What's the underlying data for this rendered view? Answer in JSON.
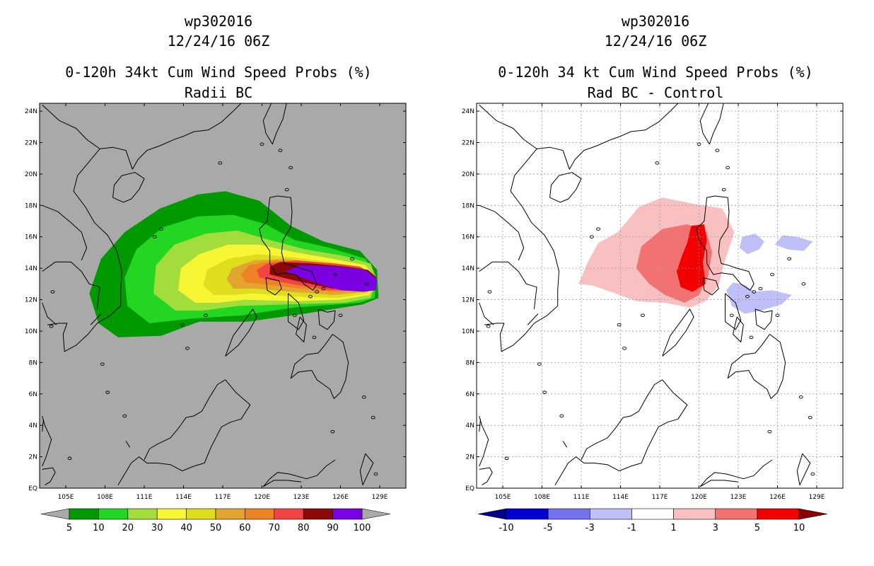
{
  "chart_data": [
    {
      "type": "heatmap",
      "title_lines": [
        "wp302016",
        "12/24/16 06Z",
        "0-120h 34kt Cum Wind Speed Probs (%)",
        "Radii BC"
      ],
      "x_ticks": [
        "105E",
        "108E",
        "111E",
        "114E",
        "117E",
        "120E",
        "123E",
        "126E",
        "129E"
      ],
      "y_ticks": [
        "EQ",
        "2N",
        "4N",
        "6N",
        "8N",
        "10N",
        "12N",
        "14N",
        "16N",
        "18N",
        "20N",
        "22N",
        "24N"
      ],
      "xlim": [
        103,
        131
      ],
      "ylim": [
        0,
        24.5
      ],
      "background": "#a9a9a9",
      "colorbar": {
        "labels": [
          "5",
          "10",
          "20",
          "30",
          "40",
          "50",
          "60",
          "70",
          "80",
          "90",
          "100"
        ],
        "colors": [
          "#009a00",
          "#22d622",
          "#a2dd3c",
          "#f6f634",
          "#dede1e",
          "#e2a630",
          "#ee8224",
          "#f24444",
          "#8a0a0a",
          "#7a02e2"
        ],
        "low_color": "#a9a9a9",
        "high_color": "#a9a9a9"
      },
      "contour_levels": [
        {
          "level": 5,
          "color": "#009a00",
          "poly": [
            [
              109,
              9.6
            ],
            [
              107.5,
              10.5
            ],
            [
              106.8,
              12.4
            ],
            [
              107.7,
              14.6
            ],
            [
              109.5,
              16.3
            ],
            [
              112.2,
              17.8
            ],
            [
              115.1,
              18.7
            ],
            [
              117.2,
              18.9
            ],
            [
              119.8,
              18.3
            ],
            [
              122.2,
              16.7
            ],
            [
              124.7,
              15.7
            ],
            [
              127.5,
              15.1
            ],
            [
              128.8,
              13.9
            ],
            [
              128.9,
              12.1
            ],
            [
              127.7,
              11.7
            ],
            [
              123.2,
              11.1
            ],
            [
              118.9,
              10.6
            ],
            [
              115.2,
              10.6
            ],
            [
              112.3,
              9.7
            ]
          ]
        },
        {
          "level": 10,
          "color": "#22d622",
          "poly": [
            [
              111.4,
              10.5
            ],
            [
              109.7,
              11.6
            ],
            [
              109.5,
              13.4
            ],
            [
              110.4,
              15.2
            ],
            [
              112.4,
              16.6
            ],
            [
              115.1,
              17.3
            ],
            [
              117.8,
              17.4
            ],
            [
              120.3,
              16.8
            ],
            [
              122.5,
              15.8
            ],
            [
              125.2,
              15.3
            ],
            [
              127.9,
              14.6
            ],
            [
              128.8,
              13.4
            ],
            [
              128.6,
              12.1
            ],
            [
              127.4,
              11.8
            ],
            [
              122.4,
              11.5
            ],
            [
              118.5,
              11.0
            ],
            [
              114.7,
              10.8
            ]
          ]
        },
        {
          "level": 20,
          "color": "#a2dd3c",
          "poly": [
            [
              113.4,
              11.3
            ],
            [
              111.7,
              12.4
            ],
            [
              111.9,
              14.2
            ],
            [
              113.3,
              15.5
            ],
            [
              115.7,
              16.2
            ],
            [
              118.1,
              16.4
            ],
            [
              120.6,
              15.8
            ],
            [
              123.3,
              15.2
            ],
            [
              126.2,
              14.8
            ],
            [
              128.3,
              14.3
            ],
            [
              128.8,
              13.2
            ],
            [
              128.3,
              12.1
            ],
            [
              126.3,
              11.8
            ],
            [
              122.0,
              11.7
            ],
            [
              118.2,
              11.6
            ],
            [
              115.4,
              11.3
            ]
          ]
        },
        {
          "level": 30,
          "color": "#f6f634",
          "poly": [
            [
              114.9,
              11.8
            ],
            [
              113.6,
              12.6
            ],
            [
              113.8,
              14.0
            ],
            [
              115.2,
              14.9
            ],
            [
              117.4,
              15.5
            ],
            [
              119.8,
              15.5
            ],
            [
              122.6,
              15.0
            ],
            [
              125.4,
              14.6
            ],
            [
              127.9,
              14.2
            ],
            [
              128.8,
              13.3
            ],
            [
              128.2,
              12.3
            ],
            [
              126.0,
              12.0
            ],
            [
              122.5,
              11.9
            ],
            [
              118.7,
              12.0
            ],
            [
              116.6,
              11.8
            ]
          ]
        },
        {
          "level": 40,
          "color": "#dede1e",
          "poly": [
            [
              116.3,
              12.3
            ],
            [
              115.5,
              12.9
            ],
            [
              115.8,
              13.9
            ],
            [
              117.4,
              14.6
            ],
            [
              119.7,
              14.9
            ],
            [
              122.3,
              14.7
            ],
            [
              125.2,
              14.4
            ],
            [
              127.8,
              14.0
            ],
            [
              128.8,
              13.3
            ],
            [
              128.1,
              12.4
            ],
            [
              125.8,
              12.1
            ],
            [
              122.3,
              12.2
            ],
            [
              119.3,
              12.4
            ],
            [
              117.8,
              12.3
            ]
          ]
        },
        {
          "level": 50,
          "color": "#e2a630",
          "poly": [
            [
              117.8,
              12.7
            ],
            [
              117.3,
              13.3
            ],
            [
              117.7,
              14.0
            ],
            [
              119.4,
              14.5
            ],
            [
              121.8,
              14.6
            ],
            [
              124.8,
              14.3
            ],
            [
              127.6,
              14.0
            ],
            [
              128.8,
              13.3
            ],
            [
              128.0,
              12.5
            ],
            [
              125.5,
              12.3
            ],
            [
              122.1,
              12.5
            ],
            [
              119.5,
              12.7
            ]
          ]
        },
        {
          "level": 60,
          "color": "#ee8224",
          "poly": [
            [
              118.7,
              13.1
            ],
            [
              118.4,
              13.6
            ],
            [
              119.0,
              14.2
            ],
            [
              121.1,
              14.5
            ],
            [
              124.3,
              14.3
            ],
            [
              127.4,
              14.0
            ],
            [
              128.8,
              13.3
            ],
            [
              127.9,
              12.6
            ],
            [
              125.3,
              12.5
            ],
            [
              122.0,
              12.8
            ],
            [
              119.9,
              13.0
            ]
          ]
        },
        {
          "level": 70,
          "color": "#f24444",
          "poly": [
            [
              119.8,
              13.4
            ],
            [
              119.6,
              13.9
            ],
            [
              120.4,
              14.3
            ],
            [
              122.6,
              14.5
            ],
            [
              125.6,
              14.3
            ],
            [
              127.5,
              14.1
            ],
            [
              128.8,
              13.4
            ],
            [
              127.8,
              12.7
            ],
            [
              125.2,
              12.6
            ],
            [
              122.2,
              13.0
            ]
          ]
        },
        {
          "level": 80,
          "color": "#8a0a0a",
          "poly": [
            [
              120.6,
              13.6
            ],
            [
              120.6,
              14.1
            ],
            [
              121.4,
              14.4
            ],
            [
              123.9,
              14.3
            ],
            [
              126.4,
              14.1
            ],
            [
              128.1,
              13.9
            ],
            [
              128.8,
              13.4
            ],
            [
              127.9,
              12.8
            ],
            [
              125.4,
              12.7
            ],
            [
              122.6,
              13.2
            ]
          ]
        },
        {
          "level": 90,
          "color": "#7a02e2",
          "poly": [
            [
              121.8,
              13.8
            ],
            [
              122.9,
              14.2
            ],
            [
              125.8,
              14.1
            ],
            [
              127.9,
              13.9
            ],
            [
              128.8,
              13.3
            ],
            [
              128.7,
              12.6
            ],
            [
              127.8,
              12.5
            ],
            [
              126.0,
              12.6
            ],
            [
              124.0,
              13.1
            ]
          ]
        }
      ]
    },
    {
      "type": "heatmap",
      "title_lines": [
        "wp302016",
        "12/24/16 06Z",
        "0-120h 34 kt Cum Wind Speed Probs (%)",
        "Rad BC - Control"
      ],
      "x_ticks": [
        "105E",
        "108E",
        "111E",
        "114E",
        "117E",
        "120E",
        "123E",
        "126E",
        "129E"
      ],
      "y_ticks": [
        "EQ",
        "2N",
        "4N",
        "6N",
        "8N",
        "10N",
        "12N",
        "14N",
        "16N",
        "18N",
        "20N",
        "22N",
        "24N"
      ],
      "xlim": [
        103,
        131
      ],
      "ylim": [
        0,
        24.5
      ],
      "background": "#ffffff",
      "grid": true,
      "colorbar": {
        "labels": [
          "-10",
          "-5",
          "-3",
          "-1",
          "1",
          "3",
          "5",
          "10"
        ],
        "colors": [
          "#0000d2",
          "#7272ee",
          "#c0c0f8",
          "#ffffff",
          "#f8c0c0",
          "#f27272",
          "#f20000"
        ],
        "low_color": "#00008c",
        "high_color": "#8c0000"
      },
      "regions": [
        {
          "level": "1 to 3",
          "color": "#f8c0c0",
          "poly": [
            [
              110.8,
              13.0
            ],
            [
              111.5,
              14.4
            ],
            [
              112.3,
              15.6
            ],
            [
              113.8,
              16.3
            ],
            [
              115.4,
              17.9
            ],
            [
              117.2,
              18.5
            ],
            [
              119.6,
              18.1
            ],
            [
              121.8,
              17.8
            ],
            [
              122.7,
              16.3
            ],
            [
              122.0,
              14.5
            ],
            [
              121.5,
              12.9
            ],
            [
              120.5,
              11.9
            ],
            [
              119.3,
              11.5
            ],
            [
              117.4,
              11.8
            ],
            [
              115.2,
              11.9
            ],
            [
              113.6,
              12.4
            ],
            [
              111.9,
              12.9
            ]
          ]
        },
        {
          "level": "3 to 5",
          "color": "#f27272",
          "poly": [
            [
              115.2,
              14.0
            ],
            [
              115.6,
              15.4
            ],
            [
              117.2,
              16.5
            ],
            [
              119.1,
              16.8
            ],
            [
              120.6,
              16.3
            ],
            [
              121.0,
              15.0
            ],
            [
              120.7,
              13.5
            ],
            [
              120.0,
              12.3
            ],
            [
              118.9,
              11.8
            ],
            [
              117.4,
              12.3
            ],
            [
              116.2,
              13.0
            ]
          ]
        },
        {
          "level": "5 to 10",
          "color": "#f20000",
          "poly": [
            [
              118.3,
              13.8
            ],
            [
              118.7,
              14.8
            ],
            [
              119.1,
              15.6
            ],
            [
              119.4,
              16.7
            ],
            [
              120.4,
              16.8
            ],
            [
              120.6,
              15.8
            ],
            [
              120.3,
              14.4
            ],
            [
              120.5,
              13.0
            ],
            [
              119.5,
              12.5
            ],
            [
              118.6,
              12.8
            ]
          ]
        },
        {
          "level": "-3 to -1",
          "color": "#c0c0f8",
          "poly": [
            [
              123.1,
              15.3
            ],
            [
              123.3,
              16.0
            ],
            [
              124.3,
              16.2
            ],
            [
              125.0,
              15.7
            ],
            [
              124.6,
              15.2
            ],
            [
              123.7,
              14.9
            ]
          ]
        },
        {
          "level": "-3 to -1",
          "color": "#c0c0f8",
          "poly": [
            [
              125.8,
              15.5
            ],
            [
              126.4,
              16.1
            ],
            [
              127.5,
              16.0
            ],
            [
              128.7,
              15.7
            ],
            [
              128.0,
              15.1
            ],
            [
              126.8,
              15.2
            ]
          ]
        },
        {
          "level": "-3 to -1",
          "color": "#c0c0f8",
          "poly": [
            [
              122.1,
              12.6
            ],
            [
              122.6,
              13.1
            ],
            [
              123.6,
              12.9
            ],
            [
              124.2,
              12.5
            ],
            [
              125.6,
              12.6
            ],
            [
              127.1,
              12.3
            ],
            [
              126.3,
              11.7
            ],
            [
              124.7,
              11.3
            ],
            [
              123.5,
              11.1
            ],
            [
              122.5,
              11.6
            ]
          ]
        }
      ]
    }
  ]
}
